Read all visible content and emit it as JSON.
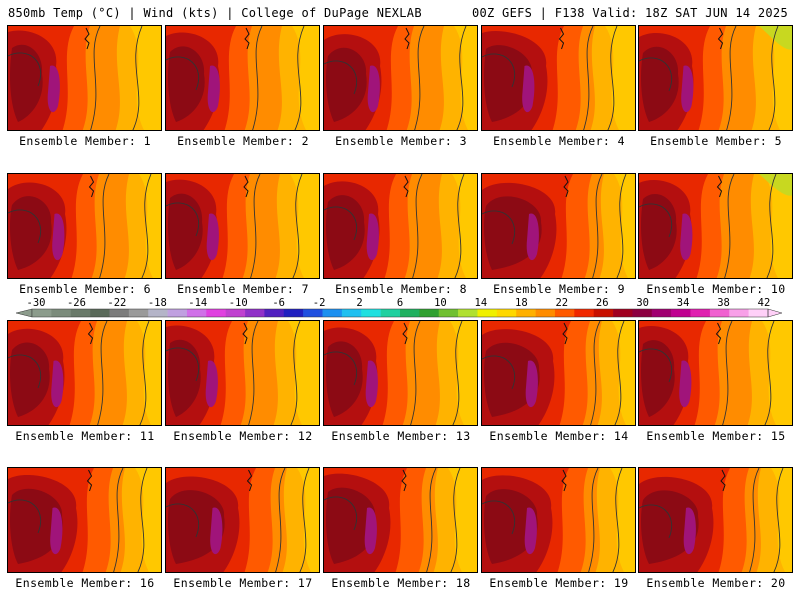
{
  "header": {
    "left": "850mb Temp (°C) | Wind (kts) | College of DuPage NEXLAB",
    "right": "00Z GEFS | F138 Valid: 18Z SAT JUN 14 2025"
  },
  "colorbar": {
    "labels": [
      "-30",
      "-26",
      "-22",
      "-18",
      "-14",
      "-10",
      "-6",
      "-2",
      "2",
      "6",
      "10",
      "14",
      "18",
      "22",
      "26",
      "30",
      "34",
      "38",
      "42"
    ],
    "colors": [
      "#8c9c8c",
      "#7c8c7c",
      "#6a7a6a",
      "#5a6a5a",
      "#7c7c7c",
      "#9a9a9a",
      "#b4b4c8",
      "#c0a0e0",
      "#d070e8",
      "#e040e0",
      "#c040d0",
      "#9030c8",
      "#5020c0",
      "#2020c0",
      "#2050e0",
      "#1c90f0",
      "#20c0f0",
      "#20e0e0",
      "#20d0a0",
      "#20b060",
      "#30a030",
      "#70c030",
      "#b0e030",
      "#f0f000",
      "#ffd800",
      "#ffb000",
      "#ff8c00",
      "#ff5a00",
      "#f02800",
      "#c81000",
      "#a00020",
      "#8c0040",
      "#a00070",
      "#c00090",
      "#e020b0",
      "#f060d0",
      "#f8a0e8",
      "#ffd0f8"
    ]
  },
  "panels": [
    {
      "label": "Ensemble Member: 1"
    },
    {
      "label": "Ensemble Member: 2"
    },
    {
      "label": "Ensemble Member: 3"
    },
    {
      "label": "Ensemble Member: 4"
    },
    {
      "label": "Ensemble Member: 5"
    },
    {
      "label": "Ensemble Member: 6"
    },
    {
      "label": "Ensemble Member: 7"
    },
    {
      "label": "Ensemble Member: 8"
    },
    {
      "label": "Ensemble Member: 9"
    },
    {
      "label": "Ensemble Member: 10"
    },
    {
      "label": "Ensemble Member: 11"
    },
    {
      "label": "Ensemble Member: 12"
    },
    {
      "label": "Ensemble Member: 13"
    },
    {
      "label": "Ensemble Member: 14"
    },
    {
      "label": "Ensemble Member: 15"
    },
    {
      "label": "Ensemble Member: 16"
    },
    {
      "label": "Ensemble Member: 17"
    },
    {
      "label": "Ensemble Member: 18"
    },
    {
      "label": "Ensemble Member: 19"
    },
    {
      "label": "Ensemble Member: 20"
    }
  ]
}
